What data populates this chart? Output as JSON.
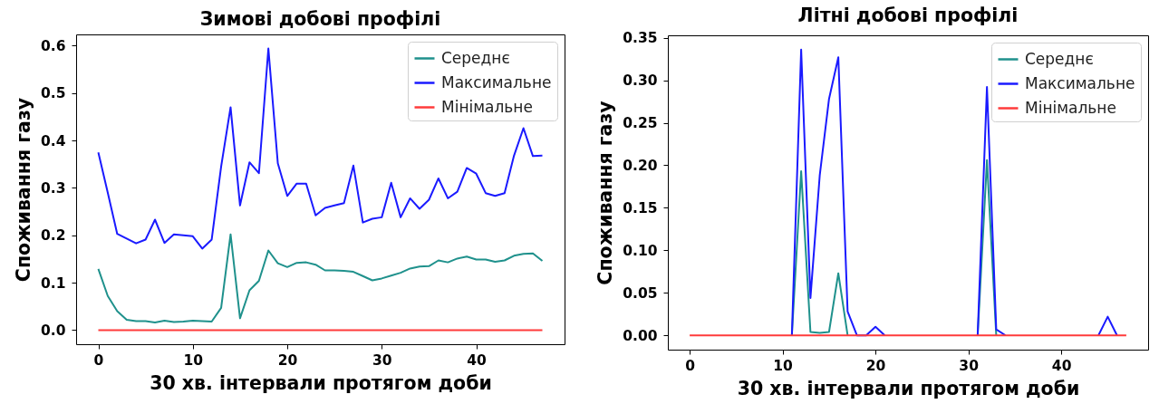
{
  "chart_data": [
    {
      "type": "line",
      "title": "Зимові добові профілі",
      "xlabel": "30 хв. інтервали протягом доби",
      "ylabel": "Споживання газу",
      "x": [
        0,
        1,
        2,
        3,
        4,
        5,
        6,
        7,
        8,
        9,
        10,
        11,
        12,
        13,
        14,
        15,
        16,
        17,
        18,
        19,
        20,
        21,
        22,
        23,
        24,
        25,
        26,
        27,
        28,
        29,
        30,
        31,
        32,
        33,
        34,
        35,
        36,
        37,
        38,
        39,
        40,
        41,
        42,
        43,
        44,
        45,
        46,
        47
      ],
      "series": [
        {
          "name": "Середнє",
          "color": "#1f918c",
          "values": [
            0.129,
            0.072,
            0.04,
            0.022,
            0.019,
            0.019,
            0.016,
            0.02,
            0.017,
            0.018,
            0.02,
            0.019,
            0.018,
            0.047,
            0.202,
            0.025,
            0.084,
            0.104,
            0.168,
            0.141,
            0.133,
            0.142,
            0.143,
            0.138,
            0.126,
            0.126,
            0.125,
            0.123,
            0.114,
            0.105,
            0.109,
            0.115,
            0.121,
            0.13,
            0.134,
            0.135,
            0.147,
            0.143,
            0.151,
            0.155,
            0.149,
            0.149,
            0.144,
            0.147,
            0.157,
            0.161,
            0.162,
            0.146
          ]
        },
        {
          "name": "Максимальне",
          "color": "#1a1aff",
          "values": [
            0.375,
            0.29,
            0.203,
            0.193,
            0.183,
            0.191,
            0.233,
            0.184,
            0.202,
            0.2,
            0.198,
            0.172,
            0.191,
            0.345,
            0.47,
            0.263,
            0.354,
            0.331,
            0.594,
            0.352,
            0.283,
            0.309,
            0.309,
            0.242,
            0.258,
            0.263,
            0.268,
            0.347,
            0.227,
            0.235,
            0.238,
            0.311,
            0.238,
            0.278,
            0.256,
            0.275,
            0.32,
            0.278,
            0.292,
            0.342,
            0.33,
            0.289,
            0.283,
            0.289,
            0.368,
            0.426,
            0.367,
            0.368
          ]
        },
        {
          "name": "Мінімальне",
          "color": "#ff3b3b",
          "values": [
            0,
            0,
            0,
            0,
            0,
            0,
            0,
            0,
            0,
            0,
            0,
            0,
            0,
            0,
            0,
            0,
            0,
            0,
            0,
            0,
            0,
            0,
            0,
            0,
            0,
            0,
            0,
            0,
            0,
            0,
            0,
            0,
            0,
            0,
            0,
            0,
            0,
            0,
            0,
            0,
            0,
            0,
            0,
            0,
            0,
            0,
            0,
            0
          ]
        }
      ],
      "xlim": [
        -2.35,
        49.35
      ],
      "ylim": [
        -0.0297,
        0.6237
      ],
      "xticks": [
        0,
        10,
        20,
        30,
        40
      ],
      "yticks": [
        {
          "value": 0,
          "label": "0.0"
        },
        0.1,
        0.2,
        0.3,
        0.4,
        0.5,
        0.6
      ],
      "legend": "top right"
    },
    {
      "type": "line",
      "title": "Літні добові профілі",
      "xlabel": "30 хв. інтервали протягом доби",
      "ylabel": "Споживання газу",
      "x": [
        0,
        1,
        2,
        3,
        4,
        5,
        6,
        7,
        8,
        9,
        10,
        11,
        12,
        13,
        14,
        15,
        16,
        17,
        18,
        19,
        20,
        21,
        22,
        23,
        24,
        25,
        26,
        27,
        28,
        29,
        30,
        31,
        32,
        33,
        34,
        35,
        36,
        37,
        38,
        39,
        40,
        41,
        42,
        43,
        44,
        45,
        46,
        47
      ],
      "series": [
        {
          "name": "Середнє",
          "color": "#1f918c",
          "values": [
            null,
            null,
            null,
            null,
            null,
            null,
            null,
            null,
            null,
            null,
            null,
            0,
            0.193,
            0.004,
            0.003,
            0.004,
            0.073,
            0,
            null,
            null,
            null,
            null,
            null,
            null,
            null,
            null,
            null,
            null,
            null,
            null,
            null,
            0,
            0.206,
            0,
            null,
            null,
            null,
            null,
            null,
            null,
            null,
            null,
            null,
            null,
            null,
            null,
            null,
            null
          ]
        },
        {
          "name": "Максимальне",
          "color": "#1a1aff",
          "values": [
            null,
            null,
            null,
            null,
            null,
            null,
            null,
            null,
            null,
            null,
            null,
            0,
            0.336,
            0.044,
            0.188,
            0.278,
            0.327,
            0.028,
            0,
            0,
            0.01,
            0,
            null,
            null,
            null,
            null,
            null,
            null,
            null,
            null,
            null,
            0,
            0.292,
            0.007,
            0,
            null,
            null,
            null,
            null,
            null,
            null,
            null,
            null,
            null,
            0,
            0.022,
            0,
            null
          ]
        },
        {
          "name": "Мінімальне",
          "color": "#ff3b3b",
          "values": [
            0,
            0,
            0,
            0,
            0,
            0,
            0,
            0,
            0,
            0,
            0,
            0,
            0,
            0,
            0,
            0,
            0,
            0,
            0,
            0,
            0,
            0,
            0,
            0,
            0,
            0,
            0,
            0,
            0,
            0,
            0,
            0,
            0,
            0,
            0,
            0,
            0,
            0,
            0,
            0,
            0,
            0,
            0,
            0,
            0,
            0,
            0,
            0
          ]
        }
      ],
      "xlim": [
        -2.35,
        49.35
      ],
      "ylim": [
        -0.0168,
        0.3528
      ],
      "xticks": [
        0,
        10,
        20,
        30,
        40
      ],
      "yticks": [
        {
          "value": 0,
          "label": "0.00"
        },
        0.05,
        {
          "value": 0.1,
          "label": "0.10"
        },
        0.15,
        {
          "value": 0.2,
          "label": "0.20"
        },
        0.25,
        {
          "value": 0.3,
          "label": "0.30"
        },
        0.35
      ],
      "legend": "top right"
    }
  ]
}
